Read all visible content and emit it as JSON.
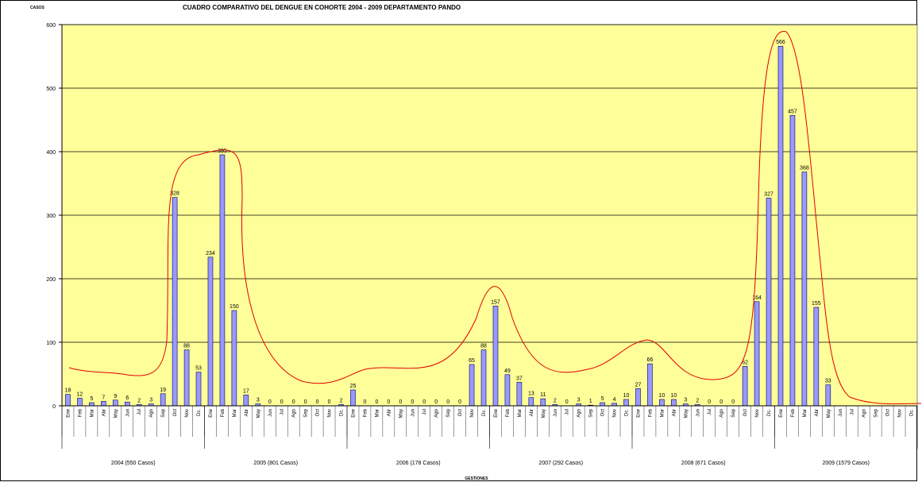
{
  "chart_data": {
    "type": "bar",
    "title": "CUADRO COMPARATIVO DEL DENGUE EN COHORTE 2004 - 2009 DEPARTAMENTO PANDO",
    "y_label": "CASOS",
    "x_label": "GESTIONES",
    "categories": [
      "Ene",
      "Feb",
      "Mar",
      "Abr",
      "May",
      "Jun",
      "Jul",
      "Ago",
      "Sep",
      "Oct",
      "Nov",
      "Dc.",
      "Ene",
      "Feb",
      "Mar",
      "Abr",
      "May",
      "Jun",
      "Jul",
      "Ago",
      "Sep",
      "Oct",
      "Nov",
      "Dc.",
      "Ene",
      "Feb",
      "Mar",
      "Abr",
      "May",
      "Jun",
      "Jul",
      "Ago",
      "Sep",
      "Oct",
      "Nov",
      "Dc.",
      "Ene",
      "Feb",
      "Mar",
      "Abr",
      "May",
      "Jun",
      "Jul",
      "Ago",
      "Sep",
      "Oct",
      "Nov",
      "Dc.",
      "Ene",
      "Feb",
      "Mar",
      "Abr",
      "May",
      "Jun",
      "Jul",
      "Ago",
      "Sep",
      "Oct",
      "Nov",
      "Dc.",
      "Ene",
      "Feb",
      "Mar",
      "Abr",
      "May",
      "Jun",
      "Jul",
      "Ago",
      "Sep",
      "Oct",
      "Nov",
      "Dc."
    ],
    "groups": [
      "2004 (550 Casos)",
      "2005 (801 Casos)",
      "2006 (178 Casos)",
      "2007 (292 Casos)",
      "2008 (671 Casos)",
      "2009 (1579 Casos)"
    ],
    "values": [
      18,
      12,
      5,
      7,
      9,
      6,
      2,
      3,
      19,
      328,
      88,
      53,
      234,
      395,
      150,
      17,
      3,
      0,
      0,
      0,
      0,
      0,
      0,
      2,
      25,
      0,
      0,
      0,
      0,
      0,
      0,
      0,
      0,
      0,
      65,
      88,
      157,
      49,
      37,
      13,
      11,
      2,
      0,
      3,
      1,
      5,
      4,
      10,
      27,
      66,
      10,
      10,
      3,
      2,
      0,
      0,
      0,
      62,
      164,
      327,
      566,
      457,
      368,
      155,
      33,
      null,
      null,
      null,
      null,
      null,
      null,
      null
    ],
    "color": "#9999ff",
    "ylim": [
      0,
      600
    ],
    "yticks": [
      0,
      100,
      200,
      300,
      400,
      500,
      600
    ],
    "grid": true
  }
}
